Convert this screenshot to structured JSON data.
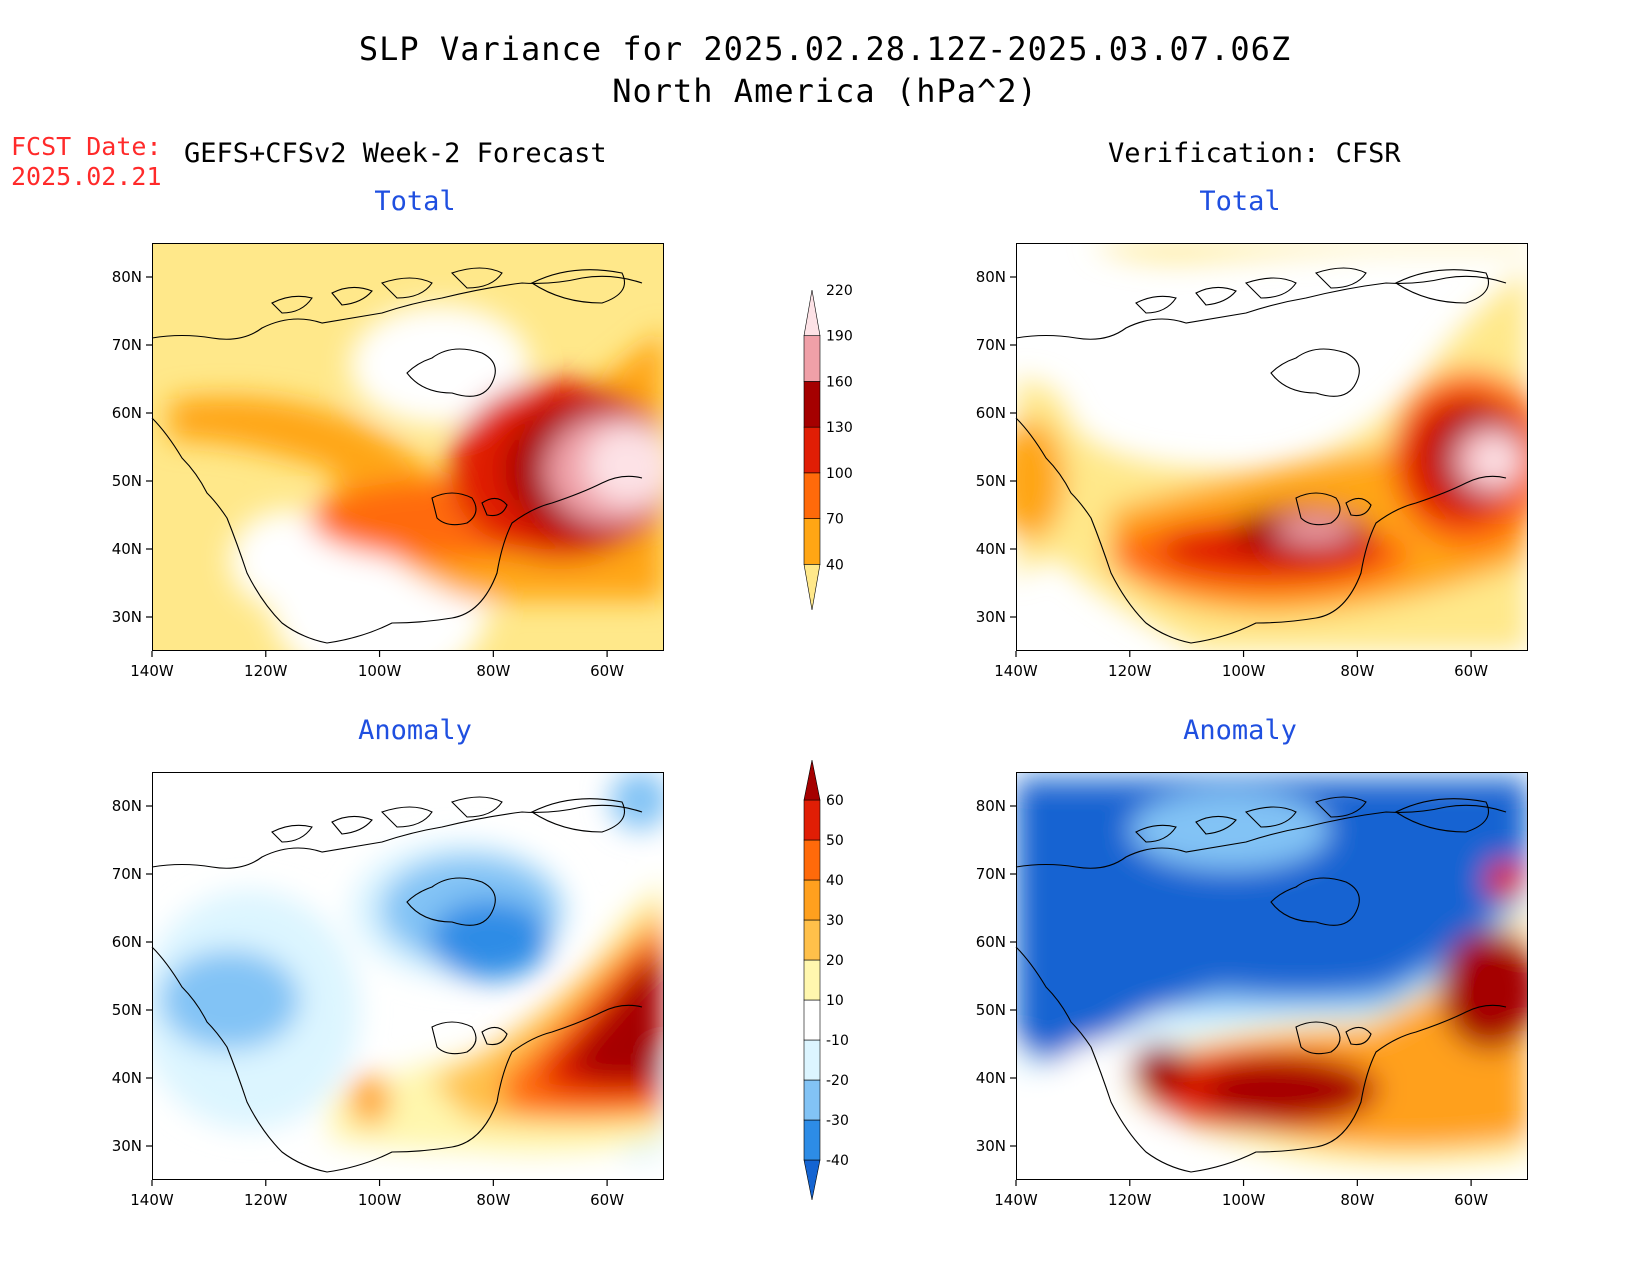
{
  "header": {
    "title_line1": "SLP Variance for 2025.02.28.12Z-2025.03.07.06Z",
    "title_line2": "North America (hPa^2)",
    "fcst_label": "FCST Date:",
    "fcst_date": "2025.02.21",
    "left_heading": "GEFS+CFSv2 Week-2 Forecast",
    "right_heading": "Verification: CFSR"
  },
  "panels": [
    {
      "id": "forecast-total",
      "title": "Total"
    },
    {
      "id": "verification-total",
      "title": "Total"
    },
    {
      "id": "forecast-anomaly",
      "title": "Anomaly"
    },
    {
      "id": "verification-anomaly",
      "title": "Anomaly"
    }
  ],
  "axes": {
    "x_ticks": [
      "140W",
      "120W",
      "100W",
      "80W",
      "60W"
    ],
    "y_ticks": [
      "80N",
      "70N",
      "60N",
      "50N",
      "40N",
      "30N"
    ],
    "lon_range": [
      -140,
      -50
    ],
    "lat_range": [
      25,
      85
    ]
  },
  "colorbars": {
    "total": {
      "levels": [
        "40",
        "70",
        "100",
        "130",
        "160",
        "190",
        "220"
      ],
      "colors": [
        "#ffe88a",
        "#ffa614",
        "#ff6a0a",
        "#e01e05",
        "#a50000",
        "#f0a0a8",
        "#fde2e6"
      ]
    },
    "anomaly": {
      "levels": [
        "-40",
        "-30",
        "-20",
        "-10",
        "10",
        "20",
        "30",
        "40",
        "50",
        "60"
      ],
      "colors": [
        "#1464d2",
        "#2d8ce6",
        "#82c3f5",
        "#dcf5ff",
        "#ffffff",
        "#fff7ae",
        "#ffc04a",
        "#ffa01e",
        "#ff6a0a",
        "#e01e05",
        "#a50000"
      ]
    }
  }
}
